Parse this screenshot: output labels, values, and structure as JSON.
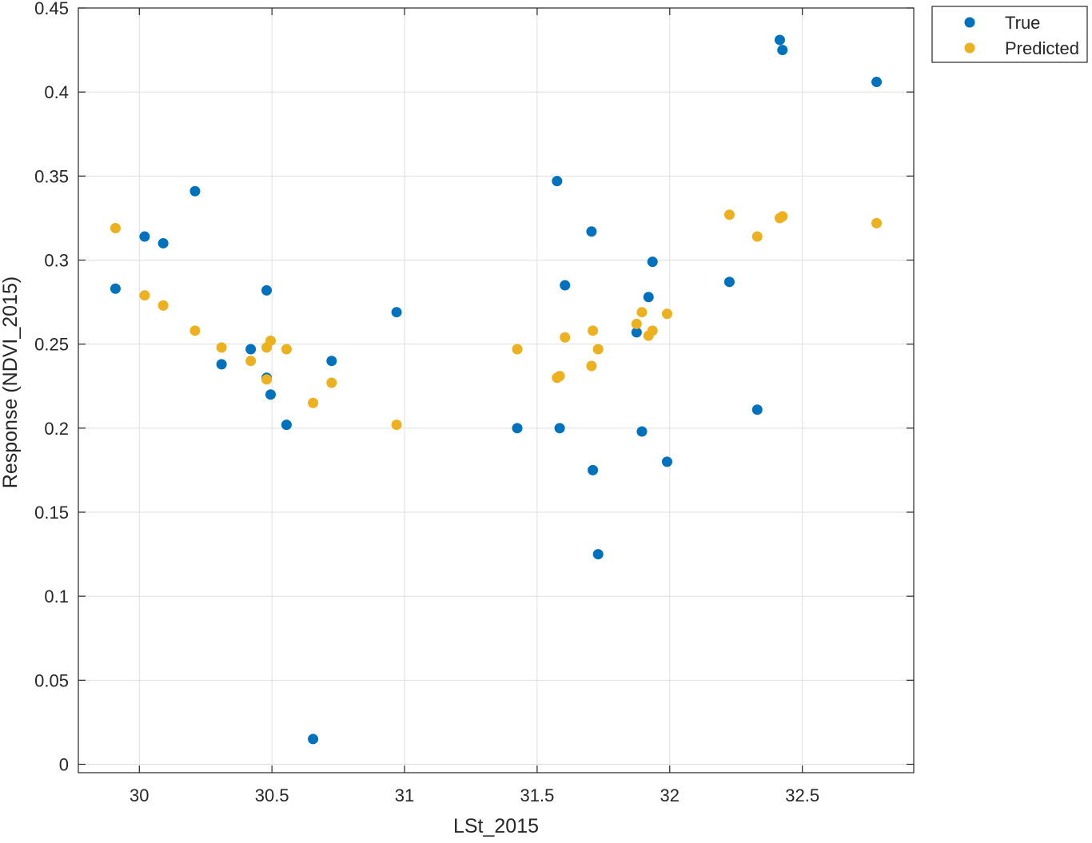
{
  "chart_data": {
    "type": "scatter",
    "xlabel": "LSt_2015",
    "ylabel": "Response (NDVI_2015)",
    "xlim": [
      29.77,
      32.92
    ],
    "ylim": [
      -0.005,
      0.45
    ],
    "xticks": [
      30,
      30.5,
      31,
      31.5,
      32,
      32.5
    ],
    "xtick_labels": [
      "30",
      "30.5",
      "31",
      "31.5",
      "32",
      "32.5"
    ],
    "yticks": [
      0,
      0.05,
      0.1,
      0.15,
      0.2,
      0.25,
      0.3,
      0.35,
      0.4,
      0.45
    ],
    "ytick_labels": [
      "0",
      "0.05",
      "0.1",
      "0.15",
      "0.2",
      "0.25",
      "0.3",
      "0.35",
      "0.4",
      "0.45"
    ],
    "grid": true,
    "legend_position": "outside top-right",
    "series": [
      {
        "name": "True",
        "color": "#0072BD",
        "x": [
          29.91,
          30.02,
          30.09,
          30.21,
          30.31,
          30.42,
          30.48,
          30.48,
          30.495,
          30.555,
          30.655,
          30.725,
          30.97,
          31.425,
          31.575,
          31.585,
          31.605,
          31.705,
          31.71,
          31.73,
          31.875,
          31.895,
          31.92,
          31.935,
          31.99,
          32.225,
          32.33,
          32.415,
          32.425,
          32.78
        ],
        "y": [
          0.283,
          0.314,
          0.31,
          0.341,
          0.238,
          0.247,
          0.282,
          0.23,
          0.22,
          0.202,
          0.015,
          0.24,
          0.269,
          0.2,
          0.347,
          0.2,
          0.285,
          0.317,
          0.175,
          0.125,
          0.257,
          0.198,
          0.278,
          0.299,
          0.18,
          0.287,
          0.211,
          0.431,
          0.425,
          0.406
        ]
      },
      {
        "name": "Predicted",
        "color": "#EDB120",
        "x": [
          29.91,
          30.02,
          30.09,
          30.21,
          30.31,
          30.42,
          30.48,
          30.48,
          30.495,
          30.555,
          30.655,
          30.725,
          30.97,
          31.425,
          31.575,
          31.585,
          31.605,
          31.705,
          31.71,
          31.73,
          31.875,
          31.895,
          31.92,
          31.935,
          31.99,
          32.225,
          32.33,
          32.415,
          32.425,
          32.78
        ],
        "y": [
          0.319,
          0.279,
          0.273,
          0.258,
          0.248,
          0.24,
          0.248,
          0.229,
          0.252,
          0.247,
          0.215,
          0.227,
          0.202,
          0.247,
          0.23,
          0.231,
          0.254,
          0.237,
          0.258,
          0.247,
          0.262,
          0.269,
          0.255,
          0.258,
          0.268,
          0.327,
          0.314,
          0.325,
          0.326,
          0.322
        ]
      }
    ]
  }
}
